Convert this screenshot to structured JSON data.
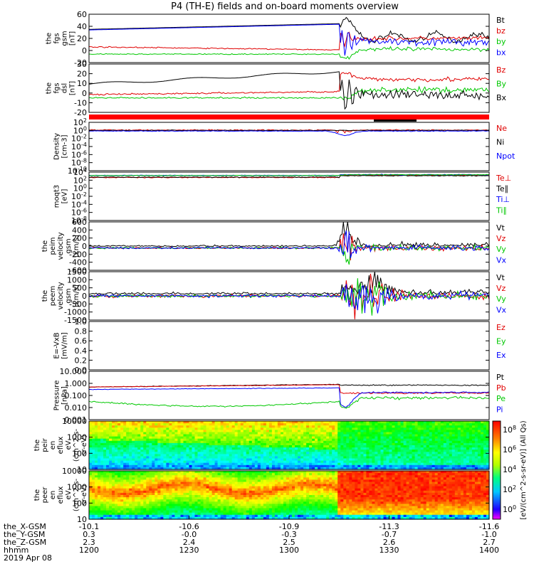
{
  "title": "P4 (TH-E) fields and on-board moments overview",
  "date_label": "2019 Apr 08",
  "colors": {
    "black": "#000000",
    "red": "#e00000",
    "green": "#00c800",
    "blue": "#0000ff"
  },
  "chart_data": [
    {
      "id": "fgs_gsm",
      "type": "line",
      "ylabel": [
        "the",
        "fgs",
        "gsm",
        "[nT]"
      ],
      "yticks": [
        "60",
        "40",
        "20",
        "0",
        "-20"
      ],
      "ylim": [
        -20,
        60
      ],
      "series": [
        {
          "name": "Bt",
          "color": "black"
        },
        {
          "name": "bz",
          "color": "red"
        },
        {
          "name": "by",
          "color": "green"
        },
        {
          "name": "bx",
          "color": "blue"
        }
      ]
    },
    {
      "id": "fgs_dsl",
      "type": "line",
      "ylabel": [
        "the",
        "fgs",
        "dsl",
        "[nT]"
      ],
      "yticks": [
        "30",
        "20",
        "10",
        "0",
        "-10",
        "-20"
      ],
      "ylim": [
        -25,
        35
      ],
      "series": [
        {
          "name": "Bz",
          "color": "red"
        },
        {
          "name": "By",
          "color": "green"
        },
        {
          "name": "Bx",
          "color": "black"
        }
      ]
    },
    {
      "id": "density",
      "type": "line",
      "ylabel": [
        "Density",
        "[cm-3]"
      ],
      "yticks": [
        "10^2",
        "10^0",
        "10^-2",
        "10^-4",
        "10^-6",
        "10^-8",
        "10^-10"
      ],
      "ylim": [
        -12,
        3
      ],
      "log": true,
      "series": [
        {
          "name": "Ne",
          "color": "red"
        },
        {
          "name": "Ni",
          "color": "black"
        },
        {
          "name": "Npot",
          "color": "blue"
        }
      ]
    },
    {
      "id": "temperature",
      "type": "line",
      "ylabel": [
        "moqt3",
        "[eV]"
      ],
      "yticks": [
        "10^4",
        "10^2",
        "10^0",
        "10^-2",
        "10^-4",
        "10^-6",
        "10^-8"
      ],
      "ylim": [
        -9,
        4.5
      ],
      "log": true,
      "series": [
        {
          "name": "Te⊥",
          "color": "red"
        },
        {
          "name": "Te∥",
          "color": "black"
        },
        {
          "name": "Ti⊥",
          "color": "blue"
        },
        {
          "name": "Ti∥",
          "color": "green"
        }
      ]
    },
    {
      "id": "peim_velocity",
      "type": "line",
      "ylabel": [
        "the",
        "peim",
        "velocity",
        "gsm",
        "[km/s]"
      ],
      "yticks": [
        "600",
        "400",
        "200",
        "0",
        "-200",
        "-400",
        "-600"
      ],
      "ylim": [
        -600,
        700
      ],
      "series": [
        {
          "name": "Vt",
          "color": "black"
        },
        {
          "name": "Vz",
          "color": "red"
        },
        {
          "name": "Vy",
          "color": "green"
        },
        {
          "name": "Vx",
          "color": "blue"
        }
      ]
    },
    {
      "id": "peem_velocity",
      "type": "line",
      "ylabel": [
        "the",
        "peem",
        "velocity",
        "gsm",
        "[km/s]"
      ],
      "yticks": [
        "1500",
        "1000",
        "500",
        "0",
        "-500",
        "-1000",
        "-1500"
      ],
      "ylim": [
        -1500,
        1500
      ],
      "series": [
        {
          "name": "Vt",
          "color": "black"
        },
        {
          "name": "Vz",
          "color": "red"
        },
        {
          "name": "Vy",
          "color": "green"
        },
        {
          "name": "Vx",
          "color": "blue"
        }
      ]
    },
    {
      "id": "efield",
      "type": "line",
      "ylabel": [
        "E=-VxB",
        "[mV/m]"
      ],
      "yticks": [
        "1.0",
        "0.8",
        "0.6",
        "0.4",
        "0.2",
        "0.0"
      ],
      "ylim": [
        0,
        1
      ],
      "series": [
        {
          "name": "Ez",
          "color": "red"
        },
        {
          "name": "Ey",
          "color": "green"
        },
        {
          "name": "Ex",
          "color": "blue"
        }
      ]
    },
    {
      "id": "pressure",
      "type": "line",
      "ylabel": [
        "Pressure",
        "[nPa]"
      ],
      "yticks": [
        "10.000",
        "1.000",
        "0.100",
        "0.010",
        "0.001"
      ],
      "ylim": [
        -3,
        1
      ],
      "log": true,
      "series": [
        {
          "name": "Pt",
          "color": "black"
        },
        {
          "name": "Pb",
          "color": "red"
        },
        {
          "name": "Pe",
          "color": "green"
        },
        {
          "name": "Pi",
          "color": "blue"
        }
      ]
    },
    {
      "id": "peir_spec",
      "type": "heatmap",
      "ylabel": [
        "the",
        "peir",
        "en",
        "eflux",
        "eV",
        "(cm^2-s-",
        "sr-eV)"
      ],
      "yticks": [
        "10000",
        "1000",
        "100",
        "10"
      ],
      "ylim": [
        5,
        30000
      ],
      "log": true
    },
    {
      "id": "peer_spec",
      "type": "heatmap",
      "ylabel": [
        "the",
        "peer",
        "en",
        "eflux",
        "eV",
        "(cm^2-s-",
        "sr-eV)"
      ],
      "yticks": [
        "10000",
        "1000",
        "100",
        "10"
      ],
      "ylim": [
        5,
        30000
      ],
      "log": true
    }
  ],
  "colorbar": {
    "label": "[eV/(cm^2-s-sr-eV)] (All Qs)",
    "ticks": [
      "10^8",
      "10^6",
      "10^4",
      "10^2",
      "10^0"
    ]
  },
  "ephemeris": {
    "row_labels": [
      "the_X-GSM",
      "the_Y-GSM",
      "the_Z-GSM",
      "hhmm"
    ],
    "columns": [
      {
        "x": "-10.1",
        "y": "0.3",
        "z": "2.3",
        "t": "1200"
      },
      {
        "x": "-10.6",
        "y": "-0.0",
        "z": "2.4",
        "t": "1230"
      },
      {
        "x": "-10.9",
        "y": "-0.3",
        "z": "2.5",
        "t": "1300"
      },
      {
        "x": "-11.3",
        "y": "-0.7",
        "z": "2.6",
        "t": "1330"
      },
      {
        "x": "-11.6",
        "y": "-1.0",
        "z": "2.7",
        "t": "1400"
      }
    ]
  }
}
